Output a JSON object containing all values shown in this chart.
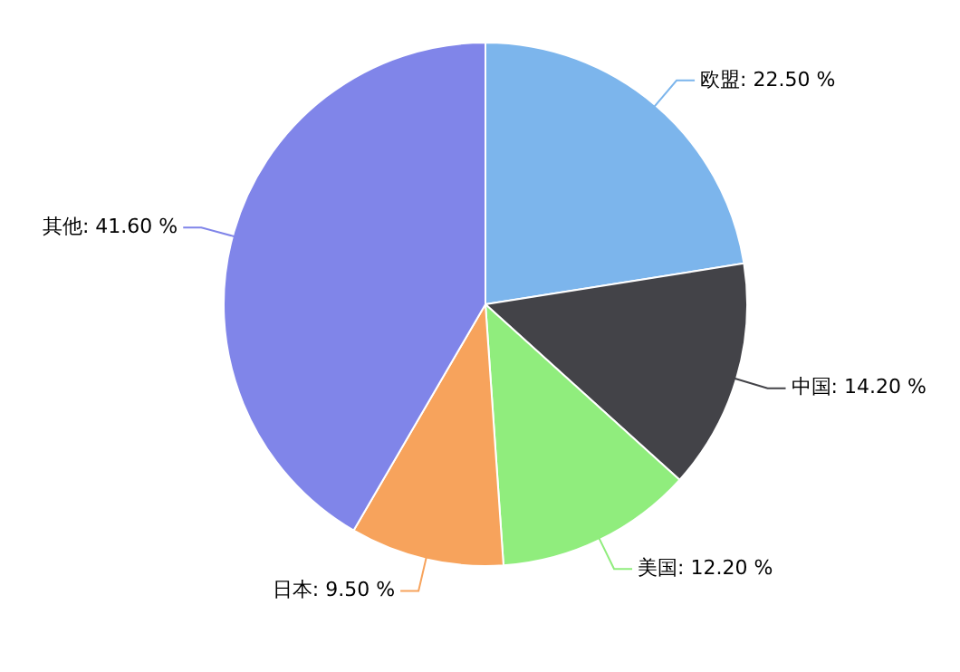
{
  "chart_data": {
    "type": "pie",
    "categories": [
      "欧盟",
      "中国",
      "美国",
      "日本",
      "其他"
    ],
    "values": [
      22.5,
      14.2,
      12.2,
      9.5,
      41.6
    ],
    "value_labels": [
      "22.50 %",
      "14.20 %",
      "12.20 %",
      "9.50 %",
      "41.60 %"
    ],
    "colors": [
      "#7cb5ec",
      "#434348",
      "#90ed7d",
      "#f7a35c",
      "#8085e9"
    ],
    "legend": false
  }
}
